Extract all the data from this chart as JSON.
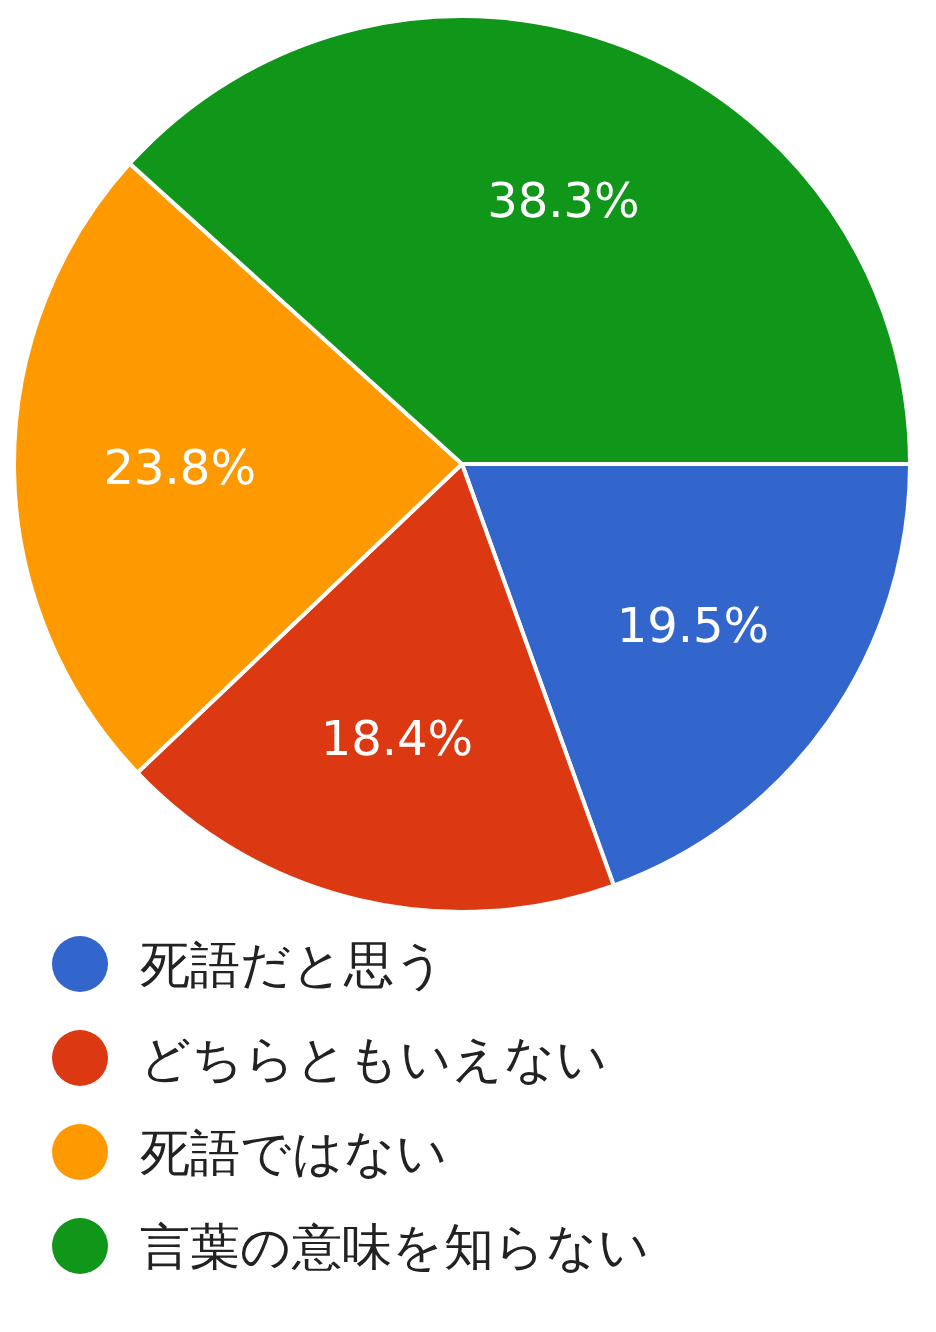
{
  "chart_data": {
    "type": "pie",
    "categories": [
      "死語だと思う",
      "どちらともいえない",
      "死語ではない",
      "言葉の意味を知らない"
    ],
    "values": [
      19.5,
      18.4,
      23.8,
      38.3
    ],
    "colors": [
      "#3366cc",
      "#dc3912",
      "#ff9900",
      "#109618"
    ],
    "value_labels": [
      "19.5%",
      "18.4%",
      "23.8%",
      "38.3%"
    ],
    "legend": "bottom"
  }
}
